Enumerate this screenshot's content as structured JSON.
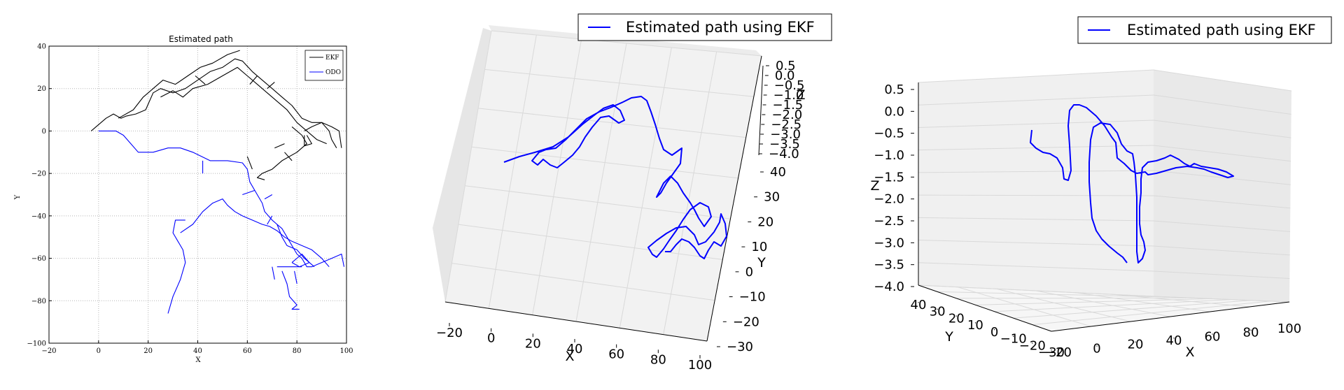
{
  "chart_data": [
    {
      "type": "line",
      "title": "Estimated path",
      "xlabel": "X",
      "ylabel": "Y",
      "xlim": [
        -20,
        100
      ],
      "ylim": [
        -100,
        40
      ],
      "xticks": [
        "−20",
        "0",
        "20",
        "40",
        "60",
        "80",
        "100"
      ],
      "yticks": [
        "40",
        "20",
        "0",
        "−20",
        "−40",
        "−60",
        "−80",
        "−100"
      ],
      "grid": true,
      "legend_position": "top-right",
      "colors": {
        "EKF": "#000000",
        "ODO": "#0000ff"
      },
      "series": [
        {
          "name": "EKF",
          "segments": [
            [
              [
                -3,
                0
              ],
              [
                3,
                6
              ],
              [
                6,
                8
              ],
              [
                9,
                6
              ],
              [
                11,
                7
              ],
              [
                15,
                8
              ],
              [
                19,
                10
              ],
              [
                22,
                18
              ],
              [
                25,
                20
              ],
              [
                30,
                18
              ],
              [
                35,
                20
              ],
              [
                40,
                24
              ],
              [
                45,
                28
              ],
              [
                50,
                30
              ],
              [
                55,
                34
              ],
              [
                58,
                33
              ],
              [
                62,
                28
              ],
              [
                66,
                24
              ],
              [
                70,
                20
              ],
              [
                74,
                16
              ],
              [
                78,
                12
              ],
              [
                82,
                6
              ],
              [
                86,
                4
              ],
              [
                90,
                4
              ],
              [
                94,
                2
              ],
              [
                97,
                0
              ],
              [
                98,
                -8
              ]
            ],
            [
              [
                8,
                6
              ],
              [
                14,
                10
              ],
              [
                18,
                16
              ],
              [
                22,
                20
              ],
              [
                26,
                24
              ],
              [
                31,
                22
              ],
              [
                36,
                26
              ],
              [
                41,
                30
              ],
              [
                46,
                32
              ],
              [
                52,
                36
              ],
              [
                57,
                38
              ]
            ],
            [
              [
                25,
                16
              ],
              [
                30,
                19
              ],
              [
                34,
                16
              ],
              [
                38,
                20
              ],
              [
                44,
                22
              ],
              [
                50,
                26
              ],
              [
                56,
                30
              ],
              [
                60,
                26
              ],
              [
                64,
                22
              ],
              [
                68,
                18
              ],
              [
                72,
                14
              ],
              [
                76,
                10
              ],
              [
                80,
                4
              ],
              [
                84,
                0
              ],
              [
                88,
                -4
              ],
              [
                92,
                -6
              ]
            ],
            [
              [
                78,
                2
              ],
              [
                82,
                -2
              ],
              [
                84,
                -6
              ],
              [
                80,
                -10
              ],
              [
                74,
                -14
              ],
              [
                70,
                -18
              ],
              [
                66,
                -20
              ],
              [
                64,
                -22
              ],
              [
                67,
                -23
              ]
            ],
            [
              [
                83,
                0
              ],
              [
                86,
                2
              ],
              [
                90,
                4
              ],
              [
                93,
                0
              ],
              [
                94,
                -4
              ],
              [
                96,
                -8
              ]
            ],
            [
              [
                84,
                -2
              ],
              [
                86,
                -6
              ],
              [
                83,
                -7
              ],
              [
                83,
                -2
              ]
            ],
            [
              [
                39,
                26
              ],
              [
                43,
                22
              ]
            ],
            [
              [
                61,
                22
              ],
              [
                64,
                26
              ]
            ],
            [
              [
                68,
                20
              ],
              [
                71,
                23
              ]
            ],
            [
              [
                71,
                -8
              ],
              [
                75,
                -6
              ]
            ],
            [
              [
                75,
                -10
              ],
              [
                78,
                -14
              ]
            ],
            [
              [
                60,
                -12
              ],
              [
                62,
                -18
              ]
            ]
          ]
        },
        {
          "name": "ODO",
          "segments": [
            [
              [
                0,
                0
              ],
              [
                7,
                0
              ],
              [
                10,
                -2
              ],
              [
                13,
                -6
              ],
              [
                16,
                -10
              ],
              [
                22,
                -10
              ],
              [
                28,
                -8
              ],
              [
                33,
                -8
              ],
              [
                38,
                -10
              ],
              [
                45,
                -14
              ],
              [
                52,
                -14
              ],
              [
                58,
                -15
              ],
              [
                60,
                -18
              ],
              [
                61,
                -24
              ],
              [
                64,
                -30
              ],
              [
                66,
                -34
              ],
              [
                67,
                -38
              ],
              [
                70,
                -42
              ],
              [
                72,
                -44
              ],
              [
                74,
                -46
              ],
              [
                76,
                -50
              ],
              [
                78,
                -54
              ],
              [
                80,
                -58
              ],
              [
                82,
                -60
              ],
              [
                84,
                -64
              ],
              [
                86,
                -64
              ],
              [
                90,
                -62
              ],
              [
                94,
                -60
              ],
              [
                98,
                -58
              ],
              [
                99,
                -64
              ]
            ],
            [
              [
                33,
                -48
              ],
              [
                38,
                -44
              ],
              [
                42,
                -38
              ],
              [
                46,
                -34
              ],
              [
                50,
                -32
              ],
              [
                52,
                -35
              ],
              [
                55,
                -38
              ],
              [
                58,
                -40
              ],
              [
                62,
                -42
              ],
              [
                66,
                -44
              ],
              [
                69,
                -45
              ],
              [
                72,
                -47
              ],
              [
                75,
                -50
              ],
              [
                78,
                -52
              ],
              [
                82,
                -54
              ],
              [
                86,
                -56
              ],
              [
                90,
                -60
              ],
              [
                93,
                -64
              ]
            ],
            [
              [
                28,
                -86
              ],
              [
                30,
                -78
              ],
              [
                33,
                -70
              ],
              [
                35,
                -62
              ],
              [
                34,
                -56
              ],
              [
                32,
                -52
              ],
              [
                30,
                -48
              ],
              [
                31,
                -42
              ],
              [
                35,
                -42
              ]
            ],
            [
              [
                72,
                -44
              ],
              [
                74,
                -50
              ],
              [
                76,
                -54
              ],
              [
                80,
                -56
              ],
              [
                83,
                -60
              ],
              [
                85,
                -62
              ],
              [
                87,
                -64
              ]
            ],
            [
              [
                74,
                -66
              ],
              [
                76,
                -72
              ],
              [
                77,
                -78
              ],
              [
                80,
                -82
              ],
              [
                78,
                -84
              ],
              [
                81,
                -84
              ]
            ],
            [
              [
                78,
                -62
              ],
              [
                82,
                -58
              ],
              [
                85,
                -62
              ],
              [
                81,
                -64
              ],
              [
                78,
                -62
              ]
            ],
            [
              [
                72,
                -64
              ],
              [
                82,
                -64
              ]
            ],
            [
              [
                42,
                -14
              ],
              [
                42,
                -20
              ]
            ],
            [
              [
                58,
                -30
              ],
              [
                63,
                -28
              ]
            ],
            [
              [
                67,
                -32
              ],
              [
                70,
                -30
              ]
            ],
            [
              [
                68,
                -44
              ],
              [
                70,
                -40
              ]
            ],
            [
              [
                70,
                -64
              ],
              [
                71,
                -70
              ]
            ],
            [
              [
                79,
                -66
              ],
              [
                80,
                -72
              ]
            ]
          ]
        }
      ]
    },
    {
      "type": "line",
      "subtype": "3d",
      "legend_position": "top-right",
      "series": [
        {
          "name": "Estimated path using EKF",
          "color": "#0000ff"
        }
      ],
      "xlabel": "X",
      "ylabel": "Y",
      "zlabel": "Z",
      "xticks": [
        "−20",
        "0",
        "20",
        "40",
        "60",
        "80",
        "100"
      ],
      "yticks": [
        "40",
        "30",
        "20",
        "10",
        "0",
        "−10",
        "−20",
        "−30"
      ],
      "zticks": [
        "0.5",
        "0.0",
        "−0.5",
        "−1.0",
        "−1.5",
        "−2.0",
        "−2.5",
        "−3.0",
        "−3.5",
        "−4.0"
      ]
    },
    {
      "type": "line",
      "subtype": "3d",
      "legend_position": "top-right",
      "series": [
        {
          "name": "Estimated path using EKF",
          "color": "#0000ff"
        }
      ],
      "xlabel": "X",
      "ylabel": "Y",
      "zlabel": "Z",
      "xticks": [
        "−20",
        "0",
        "20",
        "40",
        "60",
        "80",
        "100"
      ],
      "yticks": [
        "40",
        "30",
        "20",
        "10",
        "0",
        "−10",
        "−20",
        "−30"
      ],
      "zticks": [
        "0.5",
        "0.0",
        "−0.5",
        "−1.0",
        "−1.5",
        "−2.0",
        "−2.5",
        "−3.0",
        "−3.5",
        "−4.0"
      ]
    }
  ]
}
